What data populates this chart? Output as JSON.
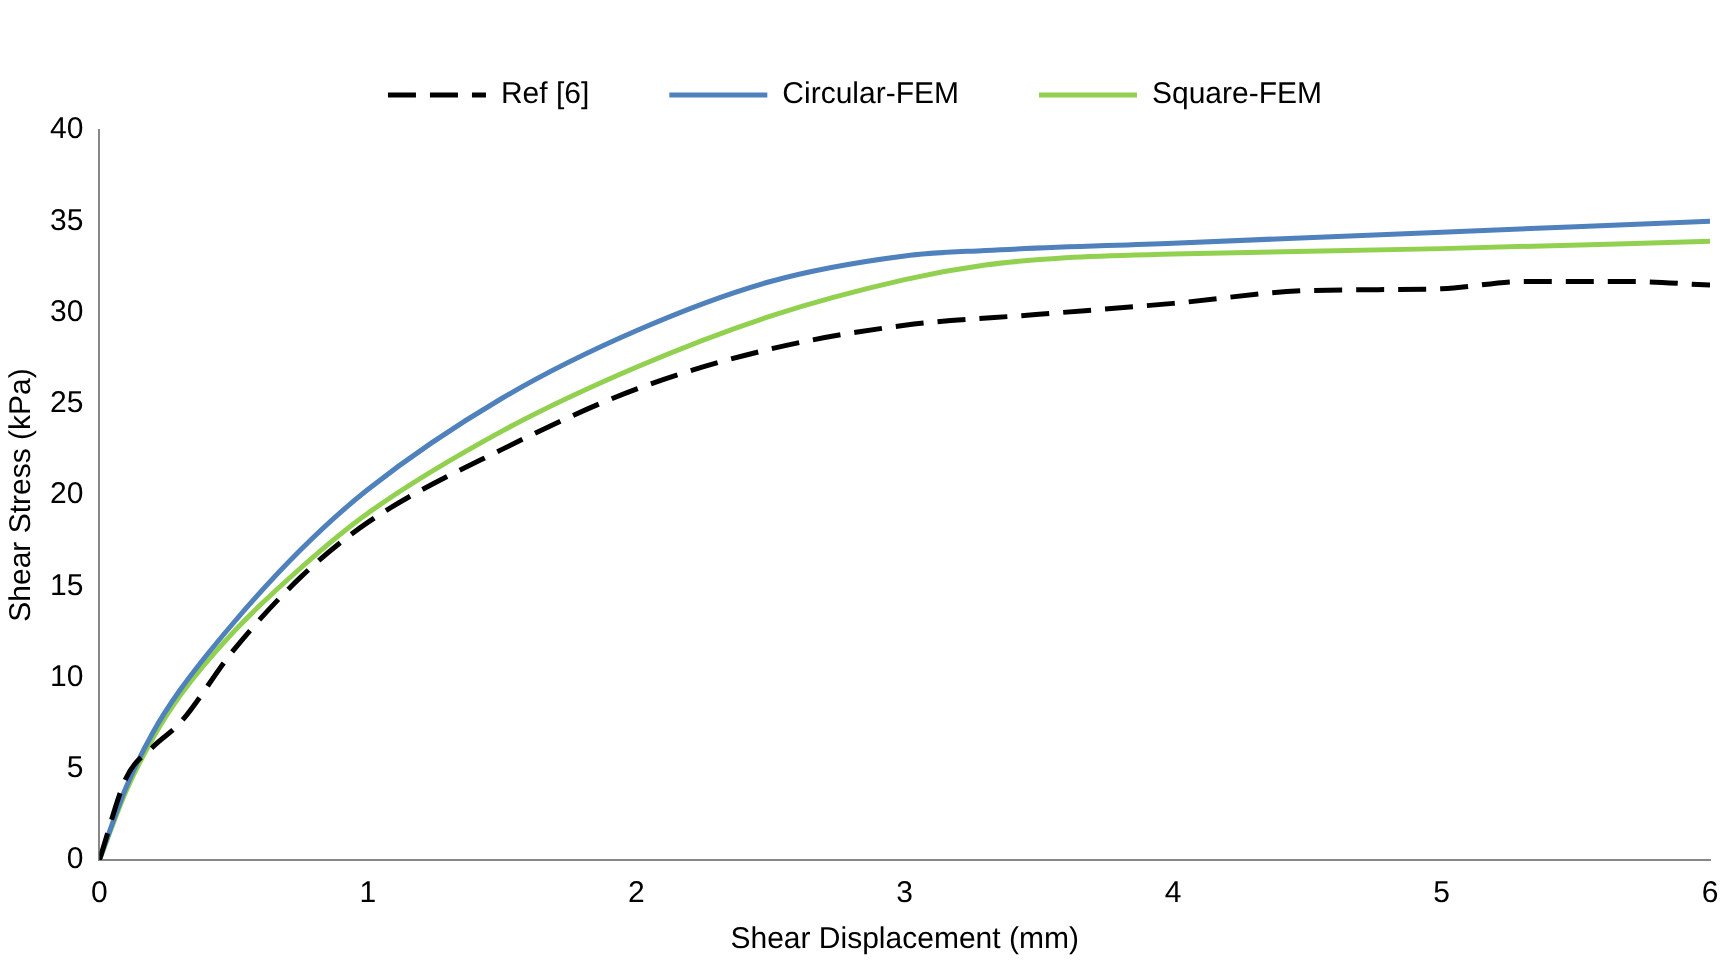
{
  "chart_data": {
    "type": "line",
    "xlabel": "Shear Displacement (mm)",
    "ylabel": "Shear Stress (kPa)",
    "xlim": [
      0,
      6
    ],
    "xticks": [
      0,
      1,
      2,
      3,
      4,
      5,
      6
    ],
    "ylim": [
      0,
      40
    ],
    "yticks": [
      0,
      5,
      10,
      15,
      20,
      25,
      30,
      35,
      40
    ],
    "grid": false,
    "legend": "top",
    "marker": "none",
    "series": [
      {
        "name": "Ref [6]",
        "color": "#000000",
        "line_style": "dashed",
        "x": [
          0,
          0.1,
          0.2,
          0.3,
          0.5,
          0.75,
          1,
          1.5,
          2,
          2.5,
          3,
          3.5,
          4,
          4.5,
          5,
          5.3,
          5.7,
          6
        ],
        "values": [
          0,
          4.5,
          6.2,
          7.5,
          11.5,
          15.5,
          18.5,
          22.5,
          25.8,
          28,
          29.3,
          29.9,
          30.5,
          31.2,
          31.3,
          31.7,
          31.7,
          31.5
        ]
      },
      {
        "name": "Circular-FEM",
        "color": "#4f81bd",
        "line_style": "solid",
        "x": [
          0,
          0.1,
          0.2,
          0.3,
          0.5,
          0.75,
          1,
          1.5,
          2,
          2.5,
          3,
          3.3,
          4,
          5,
          6
        ],
        "values": [
          0,
          4,
          7,
          9.3,
          13,
          17,
          20.3,
          25.3,
          29,
          31.7,
          33.1,
          33.4,
          33.8,
          34.4,
          35
        ]
      },
      {
        "name": "Square-FEM",
        "color": "#92d050",
        "line_style": "solid",
        "x": [
          0,
          0.1,
          0.2,
          0.3,
          0.5,
          0.75,
          1,
          1.5,
          2,
          2.5,
          3,
          3.3,
          3.6,
          4,
          5,
          6
        ],
        "values": [
          0,
          3.8,
          6.7,
          9,
          12.5,
          16,
          19,
          23.5,
          27,
          29.8,
          31.8,
          32.6,
          33,
          33.2,
          33.5,
          33.9
        ]
      }
    ]
  }
}
